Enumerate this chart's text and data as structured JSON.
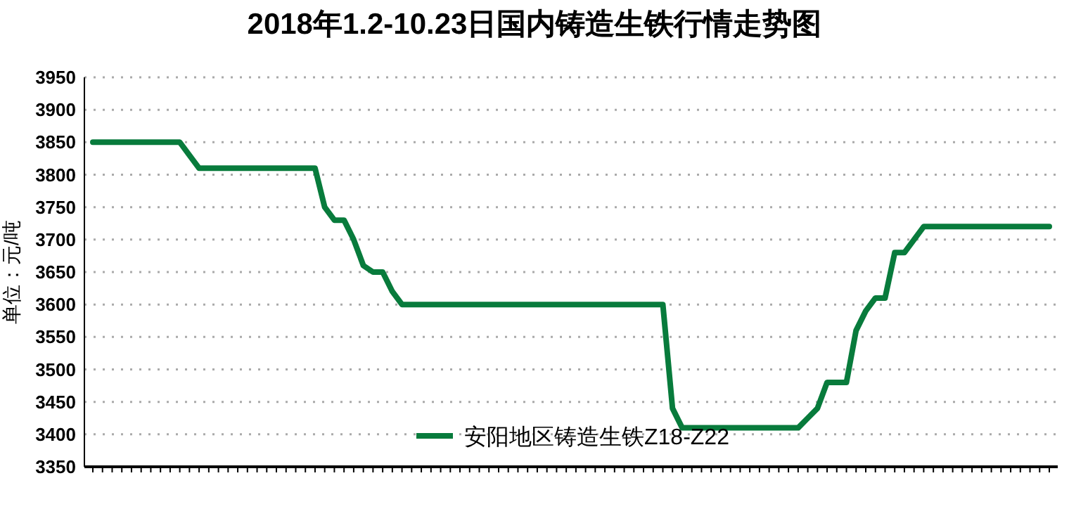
{
  "chart_data": {
    "type": "line",
    "title": "2018年1.2-10.23日国内铸造生铁行情走势图",
    "ylabel": "单位：元/吨",
    "categories": [
      null,
      null,
      null,
      null,
      null,
      null,
      null,
      null,
      null,
      null,
      null,
      null,
      null,
      null,
      null,
      null,
      null,
      null,
      null,
      null,
      null,
      null,
      null,
      null,
      null,
      null,
      null,
      null,
      null,
      null,
      null,
      null,
      null,
      null,
      null,
      null,
      null,
      null,
      null,
      null,
      null,
      null,
      null,
      null,
      null,
      null,
      null,
      null,
      null,
      null,
      null,
      null,
      null,
      null,
      null,
      null,
      null,
      null,
      null,
      null,
      null,
      null,
      null,
      null,
      null,
      null,
      null,
      null,
      null,
      null,
      null,
      null,
      null,
      null,
      null,
      null,
      null,
      null,
      null,
      null,
      null,
      null,
      null,
      null,
      null,
      null,
      null,
      null,
      null,
      null,
      null,
      null,
      null,
      null,
      null,
      null,
      null,
      null,
      null,
      null
    ],
    "series": [
      {
        "name": "安阳地区铸造生铁Z18-Z22",
        "color": "#087b3c",
        "values": [
          3850,
          3850,
          3850,
          3850,
          3850,
          3850,
          3850,
          3850,
          3850,
          3850,
          3830,
          3810,
          3810,
          3810,
          3810,
          3810,
          3810,
          3810,
          3810,
          3810,
          3810,
          3810,
          3810,
          3810,
          3750,
          3730,
          3730,
          3700,
          3660,
          3650,
          3650,
          3620,
          3600,
          3600,
          3600,
          3600,
          3600,
          3600,
          3600,
          3600,
          3600,
          3600,
          3600,
          3600,
          3600,
          3600,
          3600,
          3600,
          3600,
          3600,
          3600,
          3600,
          3600,
          3600,
          3600,
          3600,
          3600,
          3600,
          3600,
          3600,
          3440,
          3410,
          3410,
          3410,
          3410,
          3410,
          3410,
          3410,
          3410,
          3410,
          3410,
          3410,
          3410,
          3410,
          3425,
          3440,
          3480,
          3480,
          3480,
          3560,
          3590,
          3610,
          3610,
          3680,
          3680,
          3700,
          3720,
          3720,
          3720,
          3720,
          3720,
          3720,
          3720,
          3720,
          3720,
          3720,
          3720,
          3720,
          3720,
          3720
        ]
      }
    ],
    "ylim": [
      3350,
      3950
    ],
    "yticks": [
      3350,
      3400,
      3450,
      3500,
      3550,
      3600,
      3650,
      3700,
      3750,
      3800,
      3850,
      3900,
      3950
    ],
    "grid": "y",
    "legend": "bottom",
    "marker": "none",
    "line_style": "solid"
  }
}
